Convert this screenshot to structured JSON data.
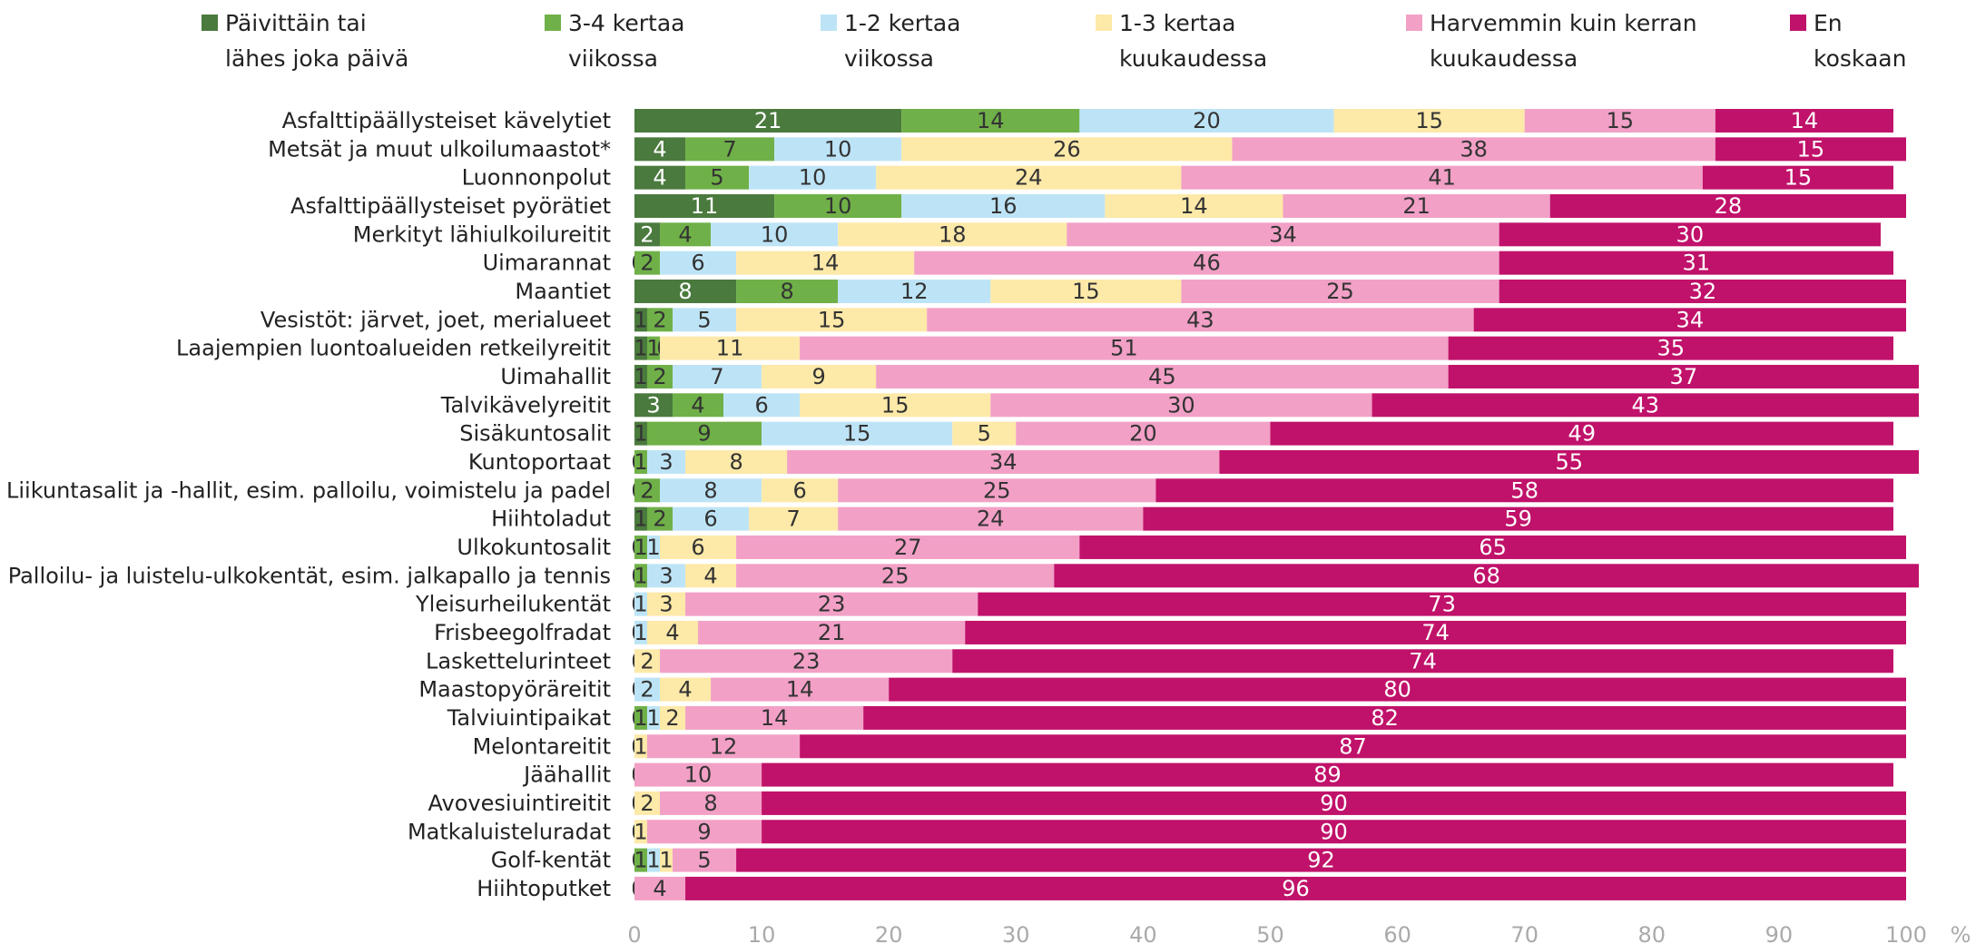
{
  "chart_data": {
    "type": "stacked_barh",
    "xlabel": "%",
    "categories": [
      "Asfalttipäällysteiset kävelytiet",
      "Metsät ja muut ulkoilumaastot*",
      "Luonnonpolut",
      "Asfalttipäällysteiset pyörätiet",
      "Merkityt lähiulkoilureitit",
      "Uimarannat",
      "Maantiet",
      "Vesistöt: järvet, joet, merialueet",
      "Laajempien luontoalueiden retkeilyreitit",
      "Uimahallit",
      "Talvikävelyreitit",
      "Sisäkuntosalit",
      "Kuntoportaat",
      "Liikuntasalit ja -hallit, esim. palloilu, voimistelu ja padel",
      "Hiihtoladut",
      "Ulkokuntosalit",
      "Palloilu- ja luistelu-ulkokentät, esim. jalkapallo ja tennis",
      "Yleisurheilukentät",
      "Frisbeegolfradat",
      "Laskettelurinteet",
      "Maastopyöräreitit",
      "Talviuintipaikat",
      "Melontareitit",
      "Jäähallit",
      "Avovesiuintireitit",
      "Matkaluisteluradat",
      "Golf-kentät",
      "Hiihtoputket"
    ],
    "series": [
      {
        "name": "Päivittäin tai lähes joka päivä",
        "color": "#4a7a3d",
        "values": [
          21,
          4,
          4,
          11,
          2,
          0,
          8,
          1,
          1,
          1,
          3,
          1,
          0,
          0,
          1,
          0,
          0,
          0,
          0,
          0,
          0,
          0,
          0,
          0,
          0,
          0,
          0,
          0
        ]
      },
      {
        "name": "3-4 kertaa viikossa",
        "color": "#6fb048",
        "values": [
          14,
          7,
          5,
          10,
          4,
          2,
          8,
          2,
          1,
          2,
          4,
          9,
          1,
          2,
          2,
          1,
          1,
          0,
          0,
          0,
          0,
          1,
          0,
          0,
          0,
          0,
          1,
          0
        ]
      },
      {
        "name": "1-2 kertaa viikossa",
        "color": "#bde4f6",
        "values": [
          20,
          10,
          10,
          16,
          10,
          6,
          12,
          5,
          0,
          7,
          6,
          15,
          3,
          8,
          6,
          1,
          3,
          1,
          1,
          0,
          2,
          1,
          0,
          0,
          0,
          0,
          1,
          0
        ]
      },
      {
        "name": "1-3 kertaa kuukaudessa",
        "color": "#fde9a8",
        "values": [
          15,
          26,
          24,
          14,
          18,
          14,
          15,
          15,
          11,
          9,
          15,
          5,
          8,
          6,
          7,
          6,
          4,
          3,
          4,
          2,
          4,
          2,
          1,
          0,
          2,
          1,
          1,
          0
        ]
      },
      {
        "name": "Harvemmin kuin kerran kuukaudessa",
        "color": "#f2a0c6",
        "values": [
          15,
          38,
          41,
          21,
          34,
          46,
          25,
          43,
          51,
          45,
          30,
          20,
          34,
          25,
          24,
          27,
          25,
          23,
          21,
          23,
          14,
          14,
          12,
          10,
          8,
          9,
          5,
          4
        ]
      },
      {
        "name": "En koskaan",
        "color": "#c0126a",
        "values": [
          14,
          15,
          15,
          28,
          30,
          31,
          32,
          34,
          35,
          37,
          43,
          49,
          55,
          58,
          59,
          65,
          68,
          73,
          74,
          74,
          80,
          82,
          87,
          89,
          90,
          90,
          92,
          96
        ]
      }
    ],
    "xlim": [
      0,
      100
    ],
    "xticks": [
      0,
      10,
      20,
      30,
      40,
      50,
      60,
      70,
      80,
      90,
      100
    ]
  }
}
